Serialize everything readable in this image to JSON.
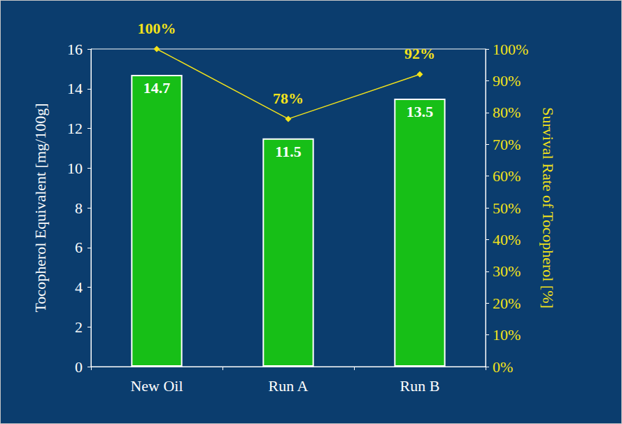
{
  "chart_data": {
    "type": "bar",
    "categories": [
      "New Oil",
      "Run A",
      "Run B"
    ],
    "ylabel": "Tocopherol Equivalent [mg/100g]",
    "y2label": "Survival Rate of Tocopherol [%]",
    "ylim": [
      0,
      16
    ],
    "yticks": [
      0,
      2,
      4,
      6,
      8,
      10,
      12,
      14,
      16
    ],
    "y2lim": [
      0,
      100
    ],
    "y2ticks": [
      {
        "value": 0,
        "label": "0%"
      },
      {
        "value": 10,
        "label": "10%"
      },
      {
        "value": 20,
        "label": "20%"
      },
      {
        "value": 30,
        "label": "30%"
      },
      {
        "value": 40,
        "label": "40%"
      },
      {
        "value": 50,
        "label": "50%"
      },
      {
        "value": 60,
        "label": "60%"
      },
      {
        "value": 70,
        "label": "70%"
      },
      {
        "value": 80,
        "label": "80%"
      },
      {
        "value": 90,
        "label": "90%"
      },
      {
        "value": 100,
        "label": "100%"
      }
    ],
    "series": [
      {
        "type": "bar",
        "color": "#17bf17",
        "values": [
          14.7,
          11.5,
          13.5
        ],
        "data_labels": true
      },
      {
        "type": "line",
        "axis": "y2",
        "color": "#f2e21a",
        "marker": "diamond",
        "values": [
          100,
          78,
          92
        ],
        "value_labels": [
          "100%",
          "78%",
          "92%"
        ],
        "data_labels": true
      }
    ]
  }
}
